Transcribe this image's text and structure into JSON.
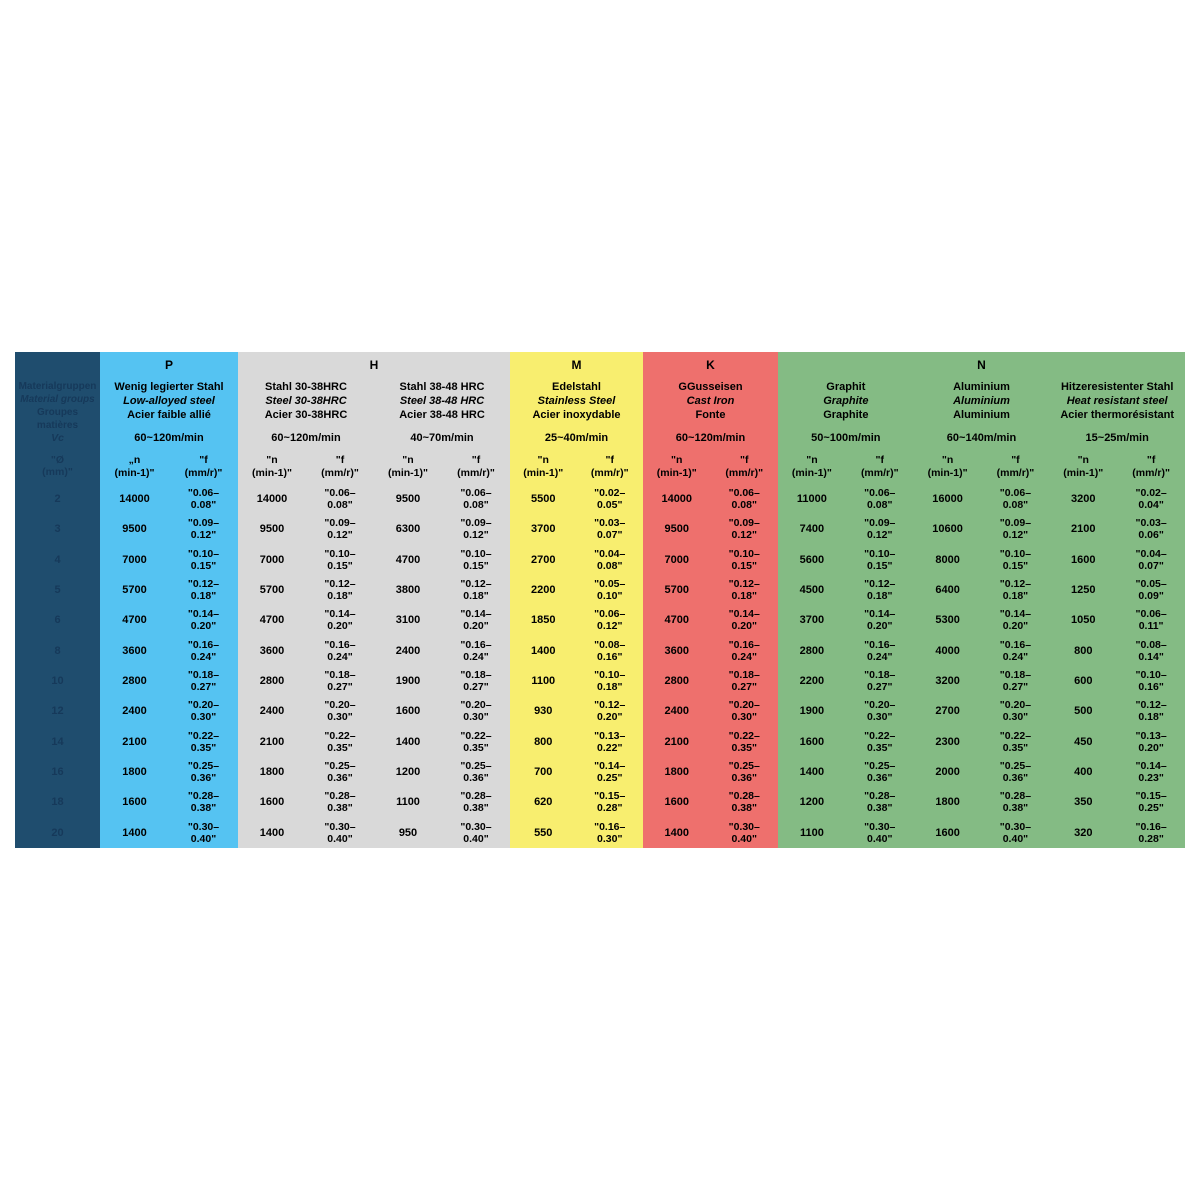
{
  "table": {
    "info_column": {
      "title_lines": [
        "Materialgruppen",
        "Material groups",
        "Groupes matières"
      ],
      "vc_label": "Vc",
      "diameter_label_lines": [
        "\"Ø",
        "(mm)\""
      ],
      "diameters": [
        "2",
        "3",
        "4",
        "5",
        "6",
        "8",
        "10",
        "12",
        "14",
        "16",
        "18",
        "20"
      ],
      "background_color": "#1f4d6e",
      "text_color": "#16395a"
    },
    "sections": [
      {
        "letter": "P",
        "color": "#55c3f2",
        "columns": [
          {
            "name_lines": [
              "Wenig legierter Stahl",
              "Low-alloyed steel",
              "Acier faible allié"
            ],
            "vc": "60~120m/min",
            "n_header": [
              "„n",
              "(min-1)\""
            ],
            "f_header": [
              "\"f",
              "(mm/r)\""
            ],
            "n": [
              "14000",
              "9500",
              "7000",
              "5700",
              "4700",
              "3600",
              "2800",
              "2400",
              "2100",
              "1800",
              "1600",
              "1400"
            ],
            "f_lines": [
              [
                "\"0.06–",
                "0.08\""
              ],
              [
                "\"0.09–",
                "0.12\""
              ],
              [
                "\"0.10–",
                "0.15\""
              ],
              [
                "\"0.12–",
                "0.18\""
              ],
              [
                "\"0.14–",
                "0.20\""
              ],
              [
                "\"0.16–",
                "0.24\""
              ],
              [
                "\"0.18–",
                "0.27\""
              ],
              [
                "\"0.20–",
                "0.30\""
              ],
              [
                "\"0.22–",
                "0.35\""
              ],
              [
                "\"0.25–",
                "0.36\""
              ],
              [
                "\"0.28–",
                "0.38\""
              ],
              [
                "\"0.30–",
                "0.40\""
              ]
            ]
          }
        ]
      },
      {
        "letter": "H",
        "color": "#d9d9d9",
        "columns": [
          {
            "name_lines": [
              "Stahl 30-38HRC",
              "Steel 30-38HRC",
              "Acier 30-38HRC"
            ],
            "vc": "60~120m/min",
            "n_header": [
              "\"n",
              "(min-1)\""
            ],
            "f_header": [
              "\"f",
              "(mm/r)\""
            ],
            "n": [
              "14000",
              "9500",
              "7000",
              "5700",
              "4700",
              "3600",
              "2800",
              "2400",
              "2100",
              "1800",
              "1600",
              "1400"
            ],
            "f_lines": [
              [
                "\"0.06–",
                "0.08\""
              ],
              [
                "\"0.09–",
                "0.12\""
              ],
              [
                "\"0.10–",
                "0.15\""
              ],
              [
                "\"0.12–",
                "0.18\""
              ],
              [
                "\"0.14–",
                "0.20\""
              ],
              [
                "\"0.16–",
                "0.24\""
              ],
              [
                "\"0.18–",
                "0.27\""
              ],
              [
                "\"0.20–",
                "0.30\""
              ],
              [
                "\"0.22–",
                "0.35\""
              ],
              [
                "\"0.25–",
                "0.36\""
              ],
              [
                "\"0.28–",
                "0.38\""
              ],
              [
                "\"0.30–",
                "0.40\""
              ]
            ]
          },
          {
            "name_lines": [
              "Stahl 38-48 HRC",
              "Steel 38-48 HRC",
              "Acier 38-48 HRC"
            ],
            "vc": "40~70m/min",
            "n_header": [
              "\"n",
              "(min-1)\""
            ],
            "f_header": [
              "\"f",
              "(mm/r)\""
            ],
            "n": [
              "9500",
              "6300",
              "4700",
              "3800",
              "3100",
              "2400",
              "1900",
              "1600",
              "1400",
              "1200",
              "1100",
              "950"
            ],
            "f_lines": [
              [
                "\"0.06–",
                "0.08\""
              ],
              [
                "\"0.09–",
                "0.12\""
              ],
              [
                "\"0.10–",
                "0.15\""
              ],
              [
                "\"0.12–",
                "0.18\""
              ],
              [
                "\"0.14–",
                "0.20\""
              ],
              [
                "\"0.16–",
                "0.24\""
              ],
              [
                "\"0.18–",
                "0.27\""
              ],
              [
                "\"0.20–",
                "0.30\""
              ],
              [
                "\"0.22–",
                "0.35\""
              ],
              [
                "\"0.25–",
                "0.36\""
              ],
              [
                "\"0.28–",
                "0.38\""
              ],
              [
                "\"0.30–",
                "0.40\""
              ]
            ]
          }
        ]
      },
      {
        "letter": "M",
        "color": "#f8ee6f",
        "columns": [
          {
            "name_lines": [
              "Edelstahl",
              "Stainless Steel",
              "Acier inoxydable"
            ],
            "vc": "25~40m/min",
            "n_header": [
              "\"n",
              "(min-1)\""
            ],
            "f_header": [
              "\"f",
              "(mm/r)\""
            ],
            "n": [
              "5500",
              "3700",
              "2700",
              "2200",
              "1850",
              "1400",
              "1100",
              "930",
              "800",
              "700",
              "620",
              "550"
            ],
            "f_lines": [
              [
                "\"0.02–",
                "0.05\""
              ],
              [
                "\"0.03–",
                "0.07\""
              ],
              [
                "\"0.04–",
                "0.08\""
              ],
              [
                "\"0.05–",
                "0.10\""
              ],
              [
                "\"0.06–",
                "0.12\""
              ],
              [
                "\"0.08–",
                "0.16\""
              ],
              [
                "\"0.10–",
                "0.18\""
              ],
              [
                "\"0.12–",
                "0.20\""
              ],
              [
                "\"0.13–",
                "0.22\""
              ],
              [
                "\"0.14–",
                "0.25\""
              ],
              [
                "\"0.15–",
                "0.28\""
              ],
              [
                "\"0.16–",
                "0.30\""
              ]
            ]
          }
        ]
      },
      {
        "letter": "K",
        "color": "#ee706d",
        "columns": [
          {
            "name_lines": [
              "GGusseisen",
              "Cast Iron",
              "Fonte"
            ],
            "vc": "60~120m/min",
            "n_header": [
              "\"n",
              "(min-1)\""
            ],
            "f_header": [
              "\"f",
              "(mm/r)\""
            ],
            "n": [
              "14000",
              "9500",
              "7000",
              "5700",
              "4700",
              "3600",
              "2800",
              "2400",
              "2100",
              "1800",
              "1600",
              "1400"
            ],
            "f_lines": [
              [
                "\"0.06–",
                "0.08\""
              ],
              [
                "\"0.09–",
                "0.12\""
              ],
              [
                "\"0.10–",
                "0.15\""
              ],
              [
                "\"0.12–",
                "0.18\""
              ],
              [
                "\"0.14–",
                "0.20\""
              ],
              [
                "\"0.16–",
                "0.24\""
              ],
              [
                "\"0.18–",
                "0.27\""
              ],
              [
                "\"0.20–",
                "0.30\""
              ],
              [
                "\"0.22–",
                "0.35\""
              ],
              [
                "\"0.25–",
                "0.36\""
              ],
              [
                "\"0.28–",
                "0.38\""
              ],
              [
                "\"0.30–",
                "0.40\""
              ]
            ]
          }
        ]
      },
      {
        "letter": "N",
        "color": "#84bb84",
        "columns": [
          {
            "name_lines": [
              "Graphit",
              "Graphite",
              "Graphite"
            ],
            "vc": "50~100m/min",
            "n_header": [
              "\"n",
              "(min-1)\""
            ],
            "f_header": [
              "\"f",
              "(mm/r)\""
            ],
            "n": [
              "11000",
              "7400",
              "5600",
              "4500",
              "3700",
              "2800",
              "2200",
              "1900",
              "1600",
              "1400",
              "1200",
              "1100"
            ],
            "f_lines": [
              [
                "\"0.06–",
                "0.08\""
              ],
              [
                "\"0.09–",
                "0.12\""
              ],
              [
                "\"0.10–",
                "0.15\""
              ],
              [
                "\"0.12–",
                "0.18\""
              ],
              [
                "\"0.14–",
                "0.20\""
              ],
              [
                "\"0.16–",
                "0.24\""
              ],
              [
                "\"0.18–",
                "0.27\""
              ],
              [
                "\"0.20–",
                "0.30\""
              ],
              [
                "\"0.22–",
                "0.35\""
              ],
              [
                "\"0.25–",
                "0.36\""
              ],
              [
                "\"0.28–",
                "0.38\""
              ],
              [
                "\"0.30–",
                "0.40\""
              ]
            ]
          },
          {
            "name_lines": [
              "Aluminium",
              "Aluminium",
              "Aluminium"
            ],
            "vc": "60~140m/min",
            "n_header": [
              "\"n",
              "(min-1)\""
            ],
            "f_header": [
              "\"f",
              "(mm/r)\""
            ],
            "n": [
              "16000",
              "10600",
              "8000",
              "6400",
              "5300",
              "4000",
              "3200",
              "2700",
              "2300",
              "2000",
              "1800",
              "1600"
            ],
            "f_lines": [
              [
                "\"0.06–",
                "0.08\""
              ],
              [
                "\"0.09–",
                "0.12\""
              ],
              [
                "\"0.10–",
                "0.15\""
              ],
              [
                "\"0.12–",
                "0.18\""
              ],
              [
                "\"0.14–",
                "0.20\""
              ],
              [
                "\"0.16–",
                "0.24\""
              ],
              [
                "\"0.18–",
                "0.27\""
              ],
              [
                "\"0.20–",
                "0.30\""
              ],
              [
                "\"0.22–",
                "0.35\""
              ],
              [
                "\"0.25–",
                "0.36\""
              ],
              [
                "\"0.28–",
                "0.38\""
              ],
              [
                "\"0.30–",
                "0.40\""
              ]
            ]
          },
          {
            "name_lines": [
              "Hitzeresistenter Stahl",
              "Heat resistant steel",
              "Acier thermorésistant"
            ],
            "vc": "15~25m/min",
            "n_header": [
              "\"n",
              "(min-1)\""
            ],
            "f_header": [
              "\"f",
              "(mm/r)\""
            ],
            "n": [
              "3200",
              "2100",
              "1600",
              "1250",
              "1050",
              "800",
              "600",
              "500",
              "450",
              "400",
              "350",
              "320"
            ],
            "f_lines": [
              [
                "\"0.02–",
                "0.04\""
              ],
              [
                "\"0.03–",
                "0.06\""
              ],
              [
                "\"0.04–",
                "0.07\""
              ],
              [
                "\"0.05–",
                "0.09\""
              ],
              [
                "\"0.06–",
                "0.11\""
              ],
              [
                "\"0.08–",
                "0.14\""
              ],
              [
                "\"0.10–",
                "0.16\""
              ],
              [
                "\"0.12–",
                "0.18\""
              ],
              [
                "\"0.13–",
                "0.20\""
              ],
              [
                "\"0.14–",
                "0.23\""
              ],
              [
                "\"0.15–",
                "0.25\""
              ],
              [
                "\"0.16–",
                "0.28\""
              ]
            ]
          }
        ]
      }
    ]
  }
}
